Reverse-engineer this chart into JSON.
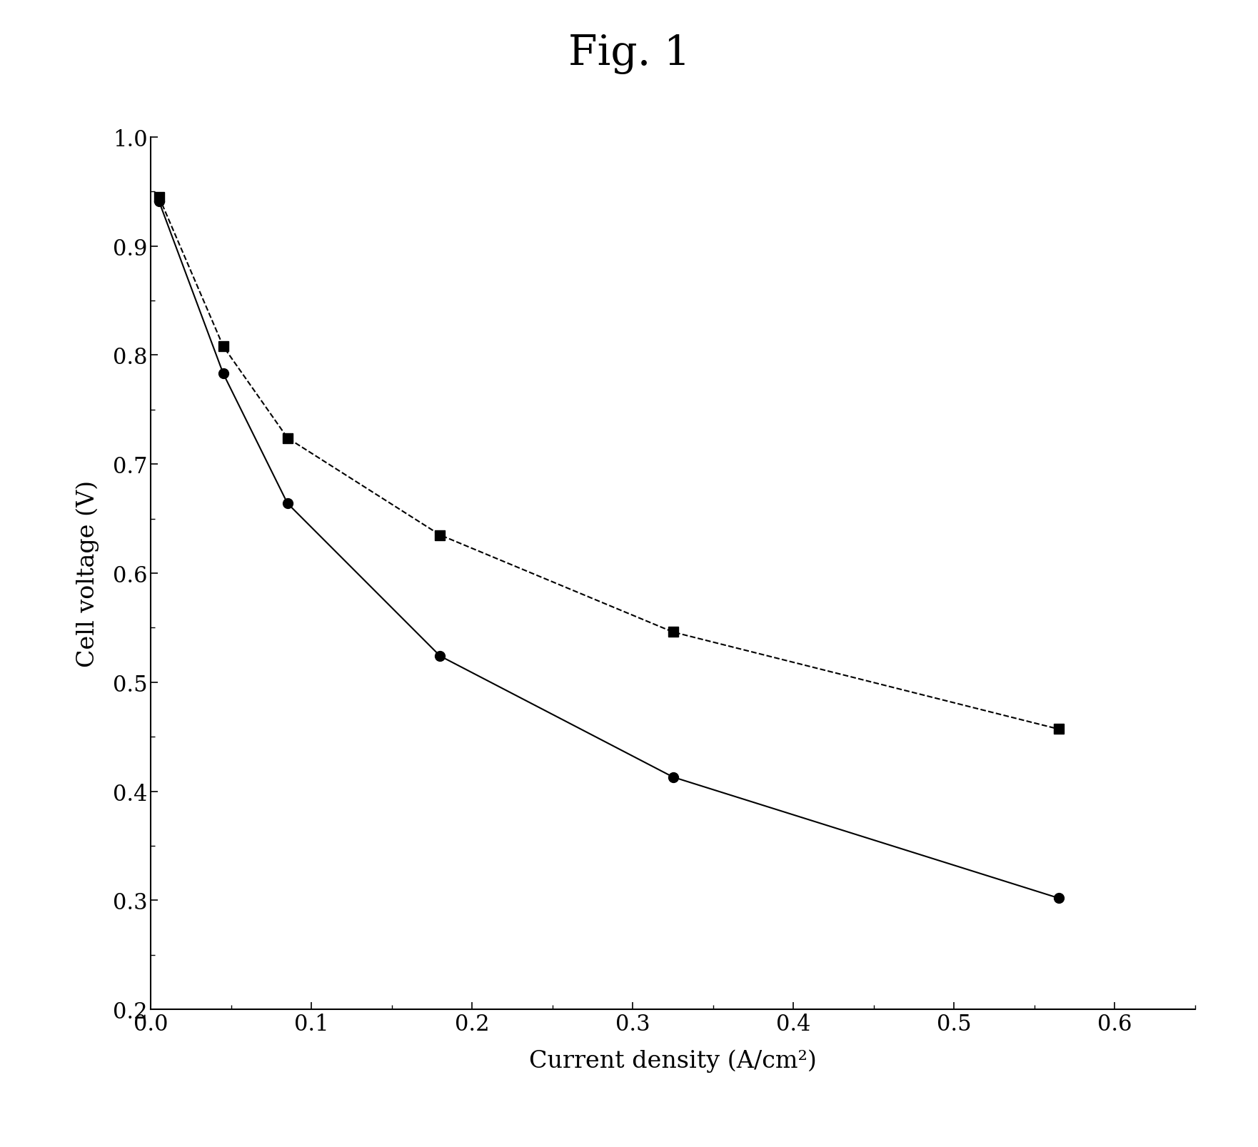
{
  "title": "Fig. 1",
  "xlabel": "Current density (A/cm²)",
  "ylabel": "Cell voltage (V)",
  "xlim": [
    0,
    0.65
  ],
  "ylim": [
    0.2,
    1.0
  ],
  "xticks": [
    0.0,
    0.1,
    0.2,
    0.3,
    0.4,
    0.5,
    0.6
  ],
  "yticks": [
    0.2,
    0.3,
    0.4,
    0.5,
    0.6,
    0.7,
    0.8,
    0.9,
    1.0
  ],
  "series1": {
    "x": [
      0.005,
      0.045,
      0.085,
      0.18,
      0.325,
      0.565
    ],
    "y": [
      0.945,
      0.808,
      0.724,
      0.635,
      0.546,
      0.457
    ],
    "marker": "s",
    "color": "#000000",
    "linestyle": "--"
  },
  "series2": {
    "x": [
      0.005,
      0.045,
      0.085,
      0.18,
      0.325,
      0.565
    ],
    "y": [
      0.941,
      0.783,
      0.664,
      0.524,
      0.413,
      0.302
    ],
    "marker": "o",
    "color": "#000000",
    "linestyle": "-"
  },
  "background_color": "#ffffff",
  "title_fontsize": 42,
  "label_fontsize": 24,
  "tick_fontsize": 22
}
